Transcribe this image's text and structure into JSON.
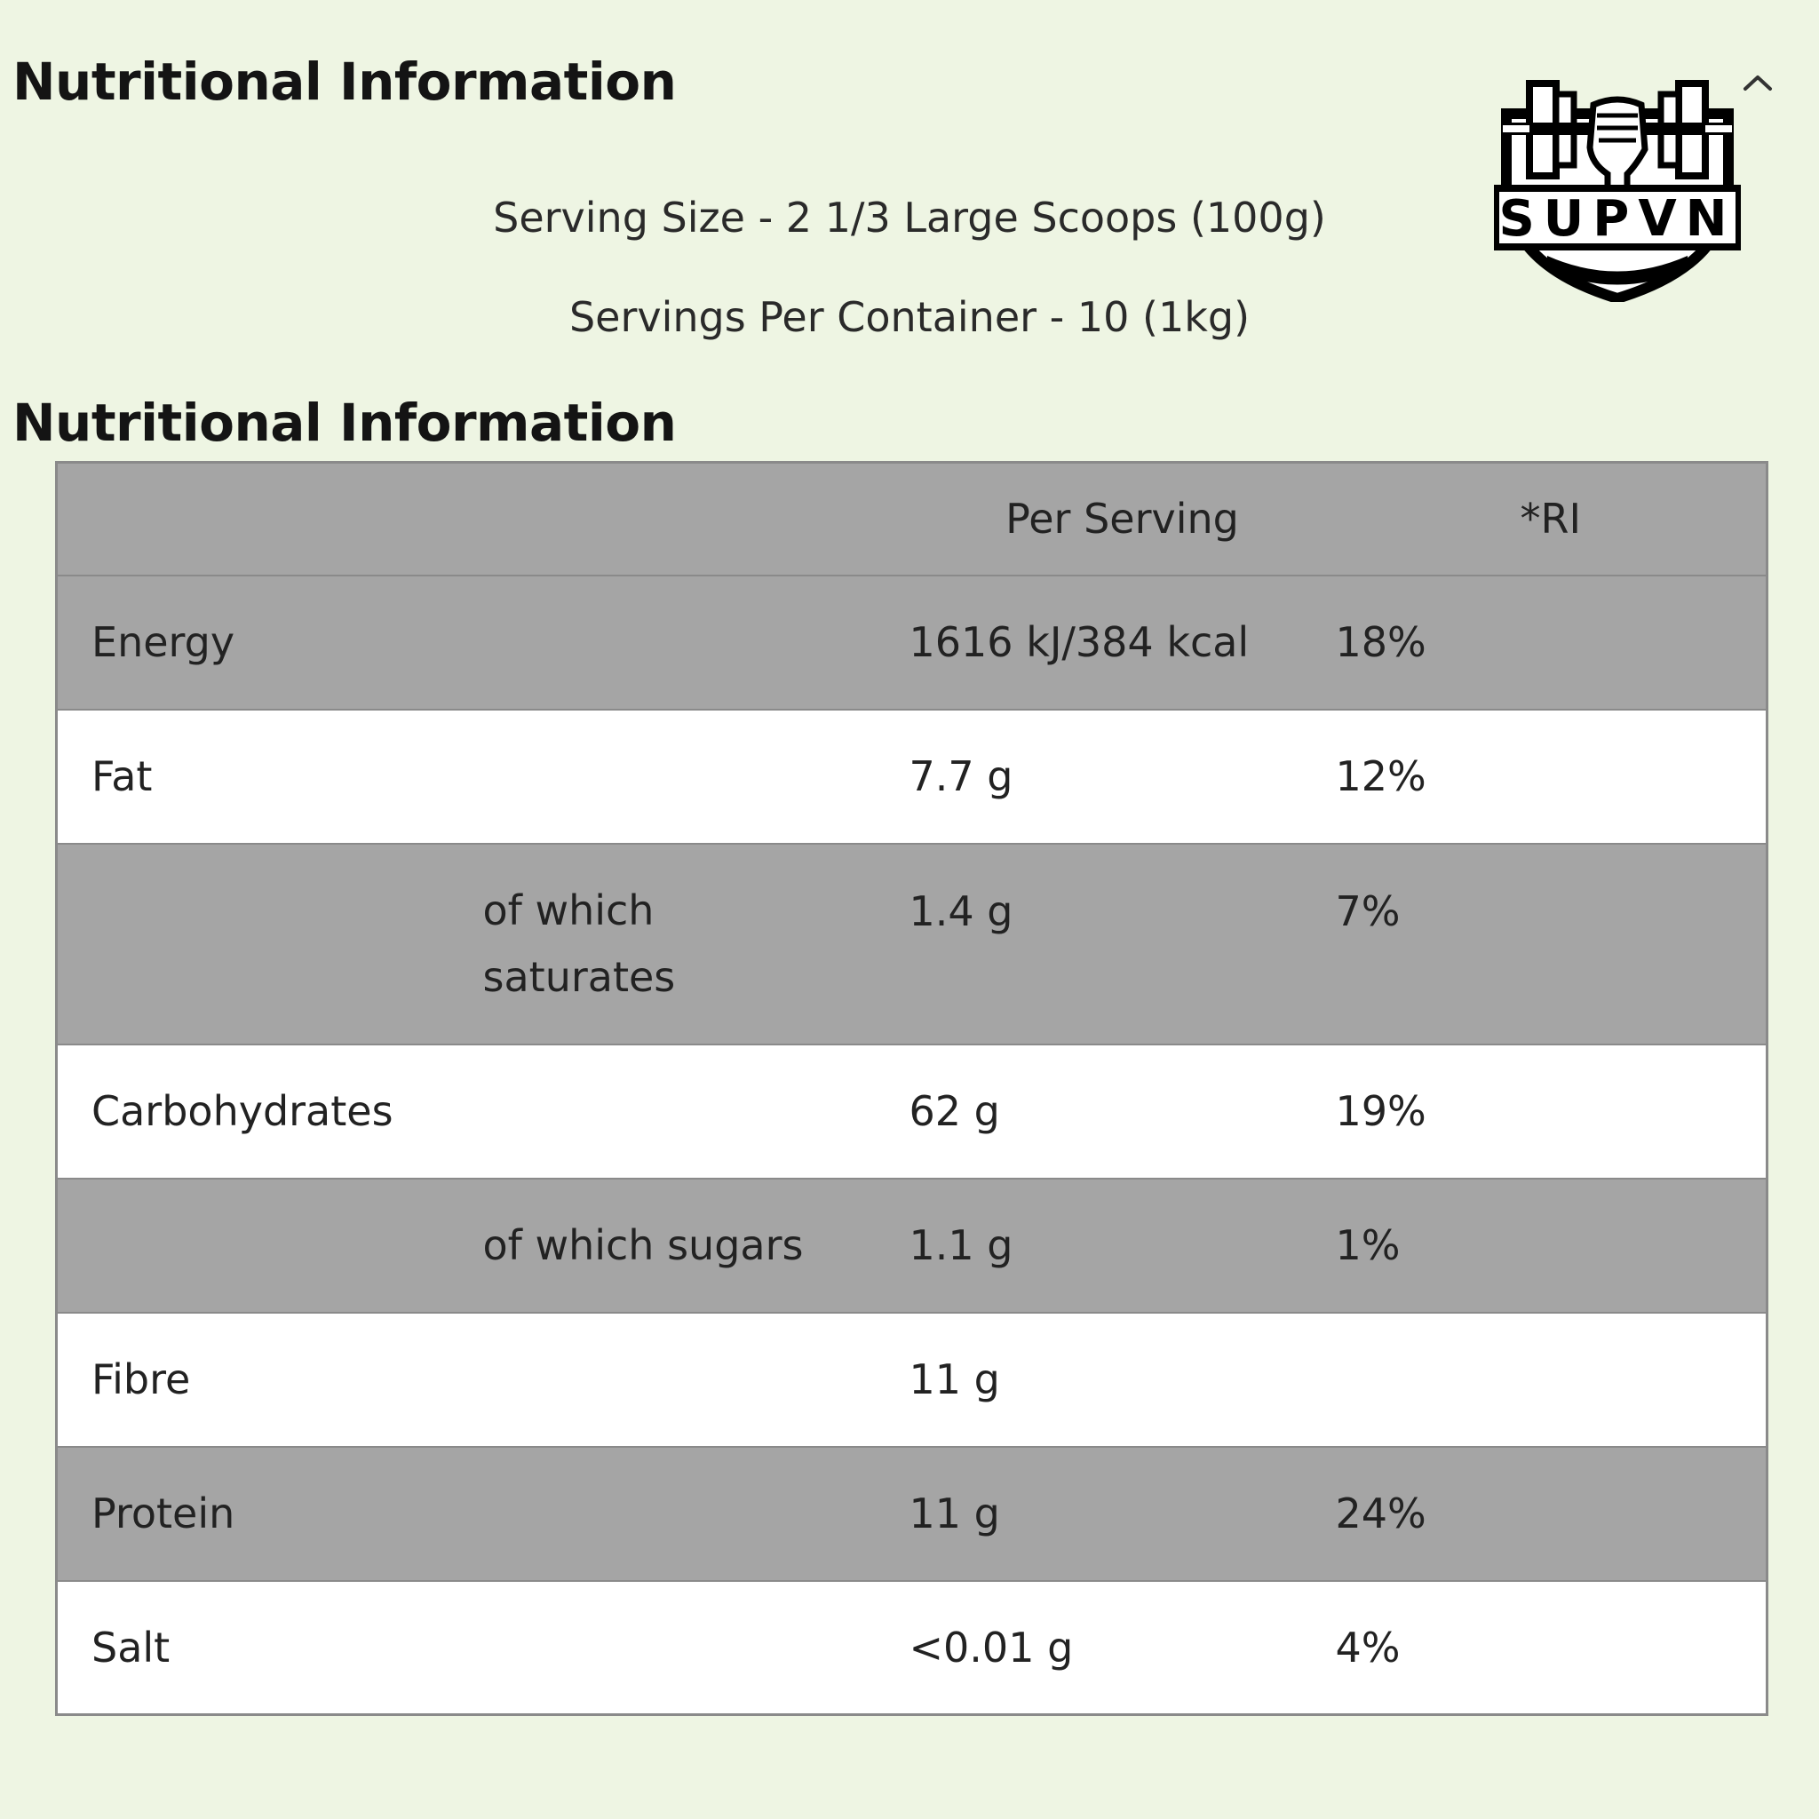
{
  "header": {
    "title": "Nutritional Information",
    "collapse_icon": "chevron-up-icon"
  },
  "logo": {
    "text": "SUPVN"
  },
  "serving": {
    "size": "Serving Size - 2 1/3 Large Scoops (100g)",
    "per_container": "Servings Per Container - 10 (1kg)"
  },
  "table": {
    "title": "Nutritional Information",
    "columns": [
      "",
      "",
      "Per Serving",
      "*RI"
    ],
    "rows": [
      {
        "name": "Energy",
        "sub": "",
        "per_serving": "1616 kJ/384 kcal",
        "ri": "18%"
      },
      {
        "name": "Fat",
        "sub": "",
        "per_serving": "7.7 g",
        "ri": "12%"
      },
      {
        "name": "",
        "sub": "of which saturates",
        "per_serving": "1.4 g",
        "ri": "7%"
      },
      {
        "name": "Carbohydrates",
        "sub": "",
        "per_serving": "62 g",
        "ri": "19%"
      },
      {
        "name": "",
        "sub": "of which sugars",
        "per_serving": "1.1 g",
        "ri": "1%"
      },
      {
        "name": "Fibre",
        "sub": "",
        "per_serving": "11 g",
        "ri": ""
      },
      {
        "name": "Protein",
        "sub": "",
        "per_serving": "11 g",
        "ri": "24%"
      },
      {
        "name": "Salt",
        "sub": "",
        "per_serving": "<0.01 g",
        "ri": "4%"
      }
    ]
  },
  "colors": {
    "background": "#eef5e3",
    "row_shaded": "#a5a5a5",
    "row_plain": "#ffffff",
    "border": "#8a8a8a"
  }
}
